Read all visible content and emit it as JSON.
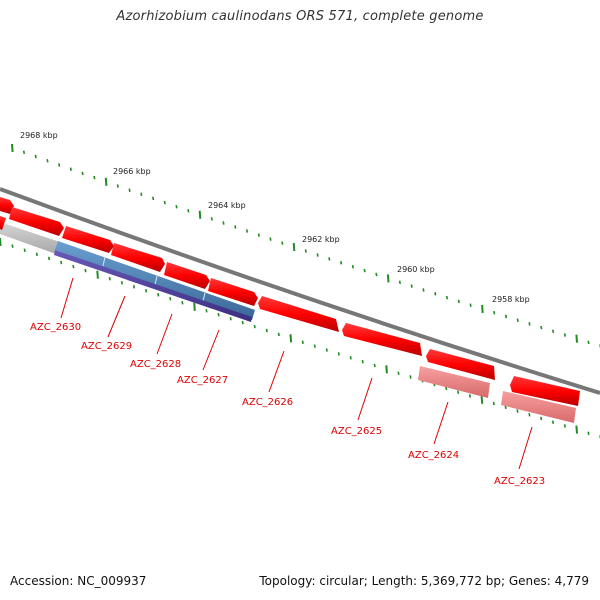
{
  "title": "Azorhizobium caulinodans ORS 571, complete genome",
  "footer": {
    "accession": "Accession: NC_009937",
    "summary": "Topology: circular; Length: 5,369,772 bp; Genes: 4,779"
  },
  "scale_labels": [
    "2968 kbp",
    "2966 kbp",
    "2964 kbp",
    "2962 kbp",
    "2960 kbp",
    "2958 kbp"
  ],
  "gene_labels": [
    "AZC_2630",
    "AZC_2629",
    "AZC_2628",
    "AZC_2627",
    "AZC_2626",
    "AZC_2625",
    "AZC_2624",
    "AZC_2623"
  ],
  "colors": {
    "cds": "#ff0000",
    "rna": "#f08080",
    "gray": "#bbbbbb",
    "blue": "#4a7fb5",
    "purple": "#4c3f9c",
    "backbone": "#777777",
    "ticks": "#228b22",
    "label": "#dd0000"
  }
}
